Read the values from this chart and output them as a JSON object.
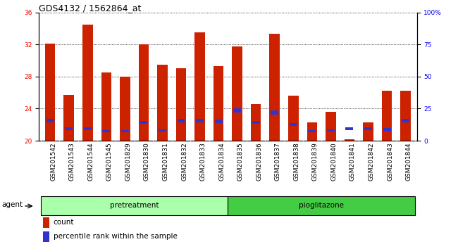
{
  "title": "GDS4132 / 1562864_at",
  "samples": [
    "GSM201542",
    "GSM201543",
    "GSM201544",
    "GSM201545",
    "GSM201829",
    "GSM201830",
    "GSM201831",
    "GSM201832",
    "GSM201833",
    "GSM201834",
    "GSM201835",
    "GSM201836",
    "GSM201837",
    "GSM201838",
    "GSM201839",
    "GSM201840",
    "GSM201841",
    "GSM201842",
    "GSM201843",
    "GSM201844"
  ],
  "count_values": [
    32.1,
    25.7,
    34.5,
    28.5,
    28.0,
    32.0,
    29.5,
    29.0,
    33.5,
    29.3,
    31.8,
    24.6,
    33.3,
    25.6,
    22.3,
    23.6,
    20.2,
    22.3,
    26.2,
    26.2
  ],
  "percentile_values": [
    22.5,
    21.5,
    21.5,
    21.2,
    21.2,
    22.3,
    21.3,
    22.5,
    22.5,
    22.4,
    23.8,
    22.3,
    23.5,
    22.0,
    21.2,
    21.3,
    21.5,
    21.5,
    21.4,
    22.5
  ],
  "percentile_heights": [
    0.4,
    0.3,
    0.3,
    0.25,
    0.25,
    0.35,
    0.28,
    0.4,
    0.4,
    0.38,
    0.55,
    0.35,
    0.52,
    0.32,
    0.25,
    0.28,
    0.3,
    0.3,
    0.28,
    0.4
  ],
  "ylim_left": [
    20,
    36
  ],
  "ylim_right": [
    0,
    100
  ],
  "yticks_left": [
    20,
    24,
    28,
    32,
    36
  ],
  "yticks_right": [
    0,
    25,
    50,
    75,
    100
  ],
  "ytick_labels_right": [
    "0",
    "25",
    "50",
    "75",
    "100%"
  ],
  "bar_color": "#cc2200",
  "dot_color": "#3333cc",
  "bg_color": "#ffffff",
  "tick_bg_color": "#cccccc",
  "pretreatment_color": "#aaffaa",
  "pioglitazone_color": "#44cc44",
  "pretreatment_label": "pretreatment",
  "pioglitazone_label": "pioglitazone",
  "agent_label": "agent",
  "legend_count": "count",
  "legend_percentile": "percentile rank within the sample",
  "bar_width": 0.55,
  "title_fontsize": 9,
  "tick_fontsize": 6.5,
  "label_fontsize": 7.5,
  "n_pretreatment": 10,
  "n_pioglitazone": 10
}
